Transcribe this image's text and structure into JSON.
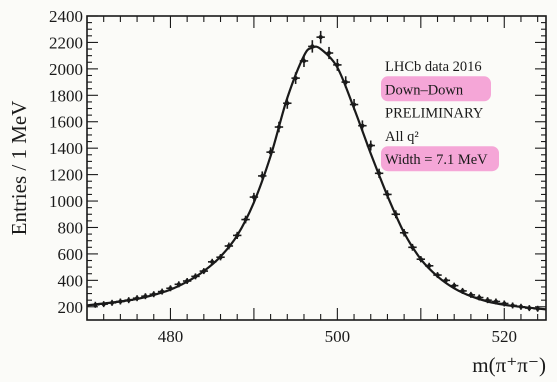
{
  "chart_data": {
    "type": "scatter",
    "title": "",
    "xlabel": "m(π⁺π⁻)",
    "ylabel": "Entries / 1 MeV",
    "xlim": [
      470,
      525
    ],
    "ylim": [
      100,
      2400
    ],
    "x_ticks": [
      "480",
      "500",
      "520"
    ],
    "y_ticks": [
      "200",
      "400",
      "600",
      "800",
      "1000",
      "1200",
      "1400",
      "1600",
      "1800",
      "2000",
      "2200",
      "2400"
    ],
    "grid": false,
    "legend_position": "top-right",
    "annotations": [
      {
        "text": "LHCb data 2016",
        "highlight": false
      },
      {
        "text": "Down–Down",
        "highlight": true
      },
      {
        "text": "PRELIMINARY",
        "highlight": false
      },
      {
        "text": "All q²",
        "highlight": false
      },
      {
        "text": "Width = 7.1 MeV",
        "highlight": true
      }
    ],
    "colors": {
      "data": "#1a1a1a",
      "fit": "#1a1a1a",
      "highlight": "#f49ad2"
    },
    "series": [
      {
        "type": "points-with-errors",
        "x": [
          471,
          472,
          473,
          474,
          475,
          476,
          477,
          478,
          479,
          480,
          481,
          482,
          483,
          484,
          485,
          486,
          487,
          488,
          489,
          490,
          491,
          492,
          493,
          494,
          495,
          496,
          497,
          498,
          499,
          500,
          501,
          502,
          503,
          504,
          505,
          506,
          507,
          508,
          509,
          510,
          511,
          512,
          513,
          514,
          515,
          516,
          517,
          518,
          519,
          520,
          521,
          522,
          523,
          524
        ],
        "y": [
          215,
          220,
          230,
          240,
          250,
          265,
          280,
          295,
          315,
          340,
          370,
          395,
          430,
          470,
          540,
          575,
          660,
          740,
          860,
          1030,
          1190,
          1370,
          1560,
          1740,
          1930,
          2060,
          2170,
          2240,
          2120,
          2030,
          1900,
          1730,
          1570,
          1420,
          1210,
          1050,
          900,
          760,
          650,
          560,
          510,
          440,
          400,
          360,
          320,
          290,
          270,
          250,
          240,
          225,
          210,
          200,
          190,
          185
        ],
        "yerr": [
          15,
          15,
          15,
          16,
          16,
          16,
          17,
          17,
          18,
          18,
          19,
          20,
          21,
          22,
          23,
          24,
          26,
          27,
          29,
          32,
          34,
          37,
          40,
          42,
          44,
          46,
          47,
          47,
          46,
          45,
          44,
          42,
          40,
          38,
          35,
          32,
          30,
          28,
          26,
          24,
          23,
          21,
          20,
          19,
          18,
          17,
          17,
          16,
          16,
          15,
          15,
          14,
          14,
          14
        ]
      },
      {
        "type": "fit-line",
        "x": [
          470,
          472,
          474,
          476,
          478,
          480,
          482,
          484,
          486,
          488,
          490,
          492,
          494,
          496,
          497,
          498,
          500,
          502,
          504,
          506,
          508,
          510,
          512,
          514,
          516,
          518,
          520,
          522,
          525
        ],
        "y": [
          210,
          225,
          240,
          260,
          290,
          330,
          390,
          470,
          580,
          740,
          990,
          1340,
          1780,
          2100,
          2160,
          2150,
          2010,
          1700,
          1360,
          1040,
          760,
          560,
          430,
          340,
          280,
          240,
          215,
          200,
          180
        ]
      }
    ]
  }
}
